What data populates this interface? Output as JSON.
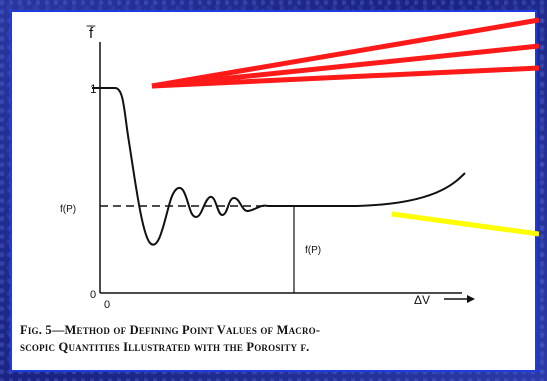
{
  "figure": {
    "y_axis_symbol": "f̅",
    "y_tick_one": "1",
    "f_p_left": "f(P)",
    "f_p_inner": "f(P)",
    "origin_zero_left": "0",
    "origin_zero_bottom": "0",
    "x_axis_label": "ΔV"
  },
  "caption": {
    "line1": "Fig. 5—Method of Defining Point Values of Macro-",
    "line2": "scopic Quantities Illustrated with the Porosity f."
  },
  "annotation_colors": {
    "red_lines": "#ff1a1a",
    "yellow_line": "#ffff00",
    "frame_border": "#1f3bdc"
  }
}
